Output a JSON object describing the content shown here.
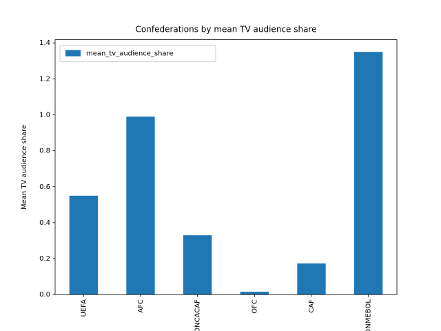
{
  "chart_data": {
    "type": "bar",
    "title": "Confederations by mean TV audience share",
    "ylabel": "Mean TV audience share",
    "categories": [
      "UEFA",
      "AFC",
      "CONCACAF",
      "OFC",
      "CAF",
      "CONMEBOL"
    ],
    "series": [
      {
        "name": "mean_tv_audience_share",
        "color": "#1f77b4",
        "values": [
          0.55,
          0.99,
          0.33,
          0.016,
          0.173,
          1.35
        ]
      }
    ],
    "ylim": [
      0,
      1.4175
    ],
    "yticks": [
      {
        "value": 0,
        "label": "0.0"
      },
      0.2,
      0.4,
      0.6,
      0.8,
      {
        "value": 1,
        "label": "1.0"
      },
      1.2,
      1.4
    ],
    "legend": "upper left"
  }
}
